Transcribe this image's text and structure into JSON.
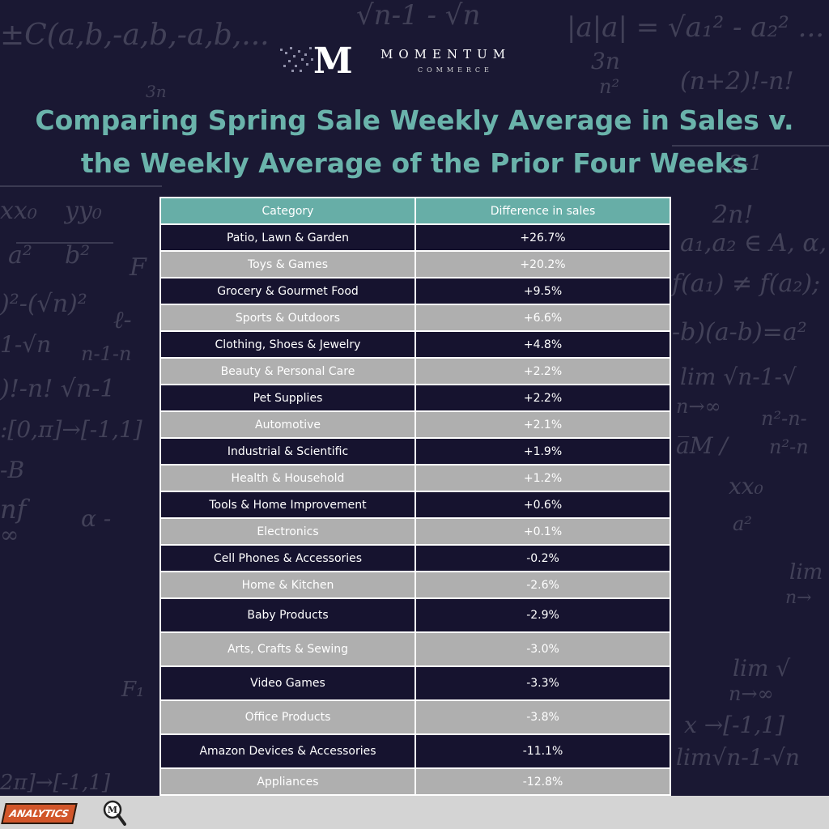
{
  "brand": {
    "name": "MOMENTUM",
    "tagline": "COMMERCE",
    "mark_letter": "M"
  },
  "title_line1": "Comparing Spring Sale Weekly Average in Sales v.",
  "title_line2": "the Weekly Average of the Prior Four Weeks",
  "table": {
    "headers": [
      "Category",
      "Difference in sales"
    ],
    "rows": [
      {
        "category": "Patio, Lawn & Garden",
        "difference": "+26.7%"
      },
      {
        "category": "Toys & Games",
        "difference": "+20.2%"
      },
      {
        "category": "Grocery & Gourmet Food",
        "difference": "+9.5%"
      },
      {
        "category": "Sports & Outdoors",
        "difference": "+6.6%"
      },
      {
        "category": "Clothing, Shoes & Jewelry",
        "difference": "+4.8%"
      },
      {
        "category": "Beauty & Personal Care",
        "difference": "+2.2%"
      },
      {
        "category": "Pet Supplies",
        "difference": "+2.2%"
      },
      {
        "category": "Automotive",
        "difference": "+2.1%"
      },
      {
        "category": "Industrial & Scientific",
        "difference": "+1.9%"
      },
      {
        "category": "Health & Household",
        "difference": "+1.2%"
      },
      {
        "category": "Tools & Home Improvement",
        "difference": "+0.6%"
      },
      {
        "category": "Electronics",
        "difference": "+0.1%"
      },
      {
        "category": "Cell Phones & Accessories",
        "difference": "-0.2%"
      },
      {
        "category": "Home & Kitchen",
        "difference": "-2.6%"
      },
      {
        "category": "Baby Products",
        "difference": "-2.9%"
      },
      {
        "category": "Arts, Crafts & Sewing",
        "difference": "-3.0%"
      },
      {
        "category": "Video Games",
        "difference": "-3.3%"
      },
      {
        "category": "Office Products",
        "difference": "-3.8%"
      },
      {
        "category": "Amazon Devices & Accessories",
        "difference": "-11.1%"
      },
      {
        "category": "Appliances",
        "difference": "-12.8%"
      }
    ]
  },
  "footer": {
    "badge": "ANALYTICS",
    "magnifier_letter": "M"
  },
  "colors": {
    "background": "#1a1833",
    "accent": "#67aea7",
    "row_dark": "#16132f",
    "row_light": "#afafaf"
  }
}
